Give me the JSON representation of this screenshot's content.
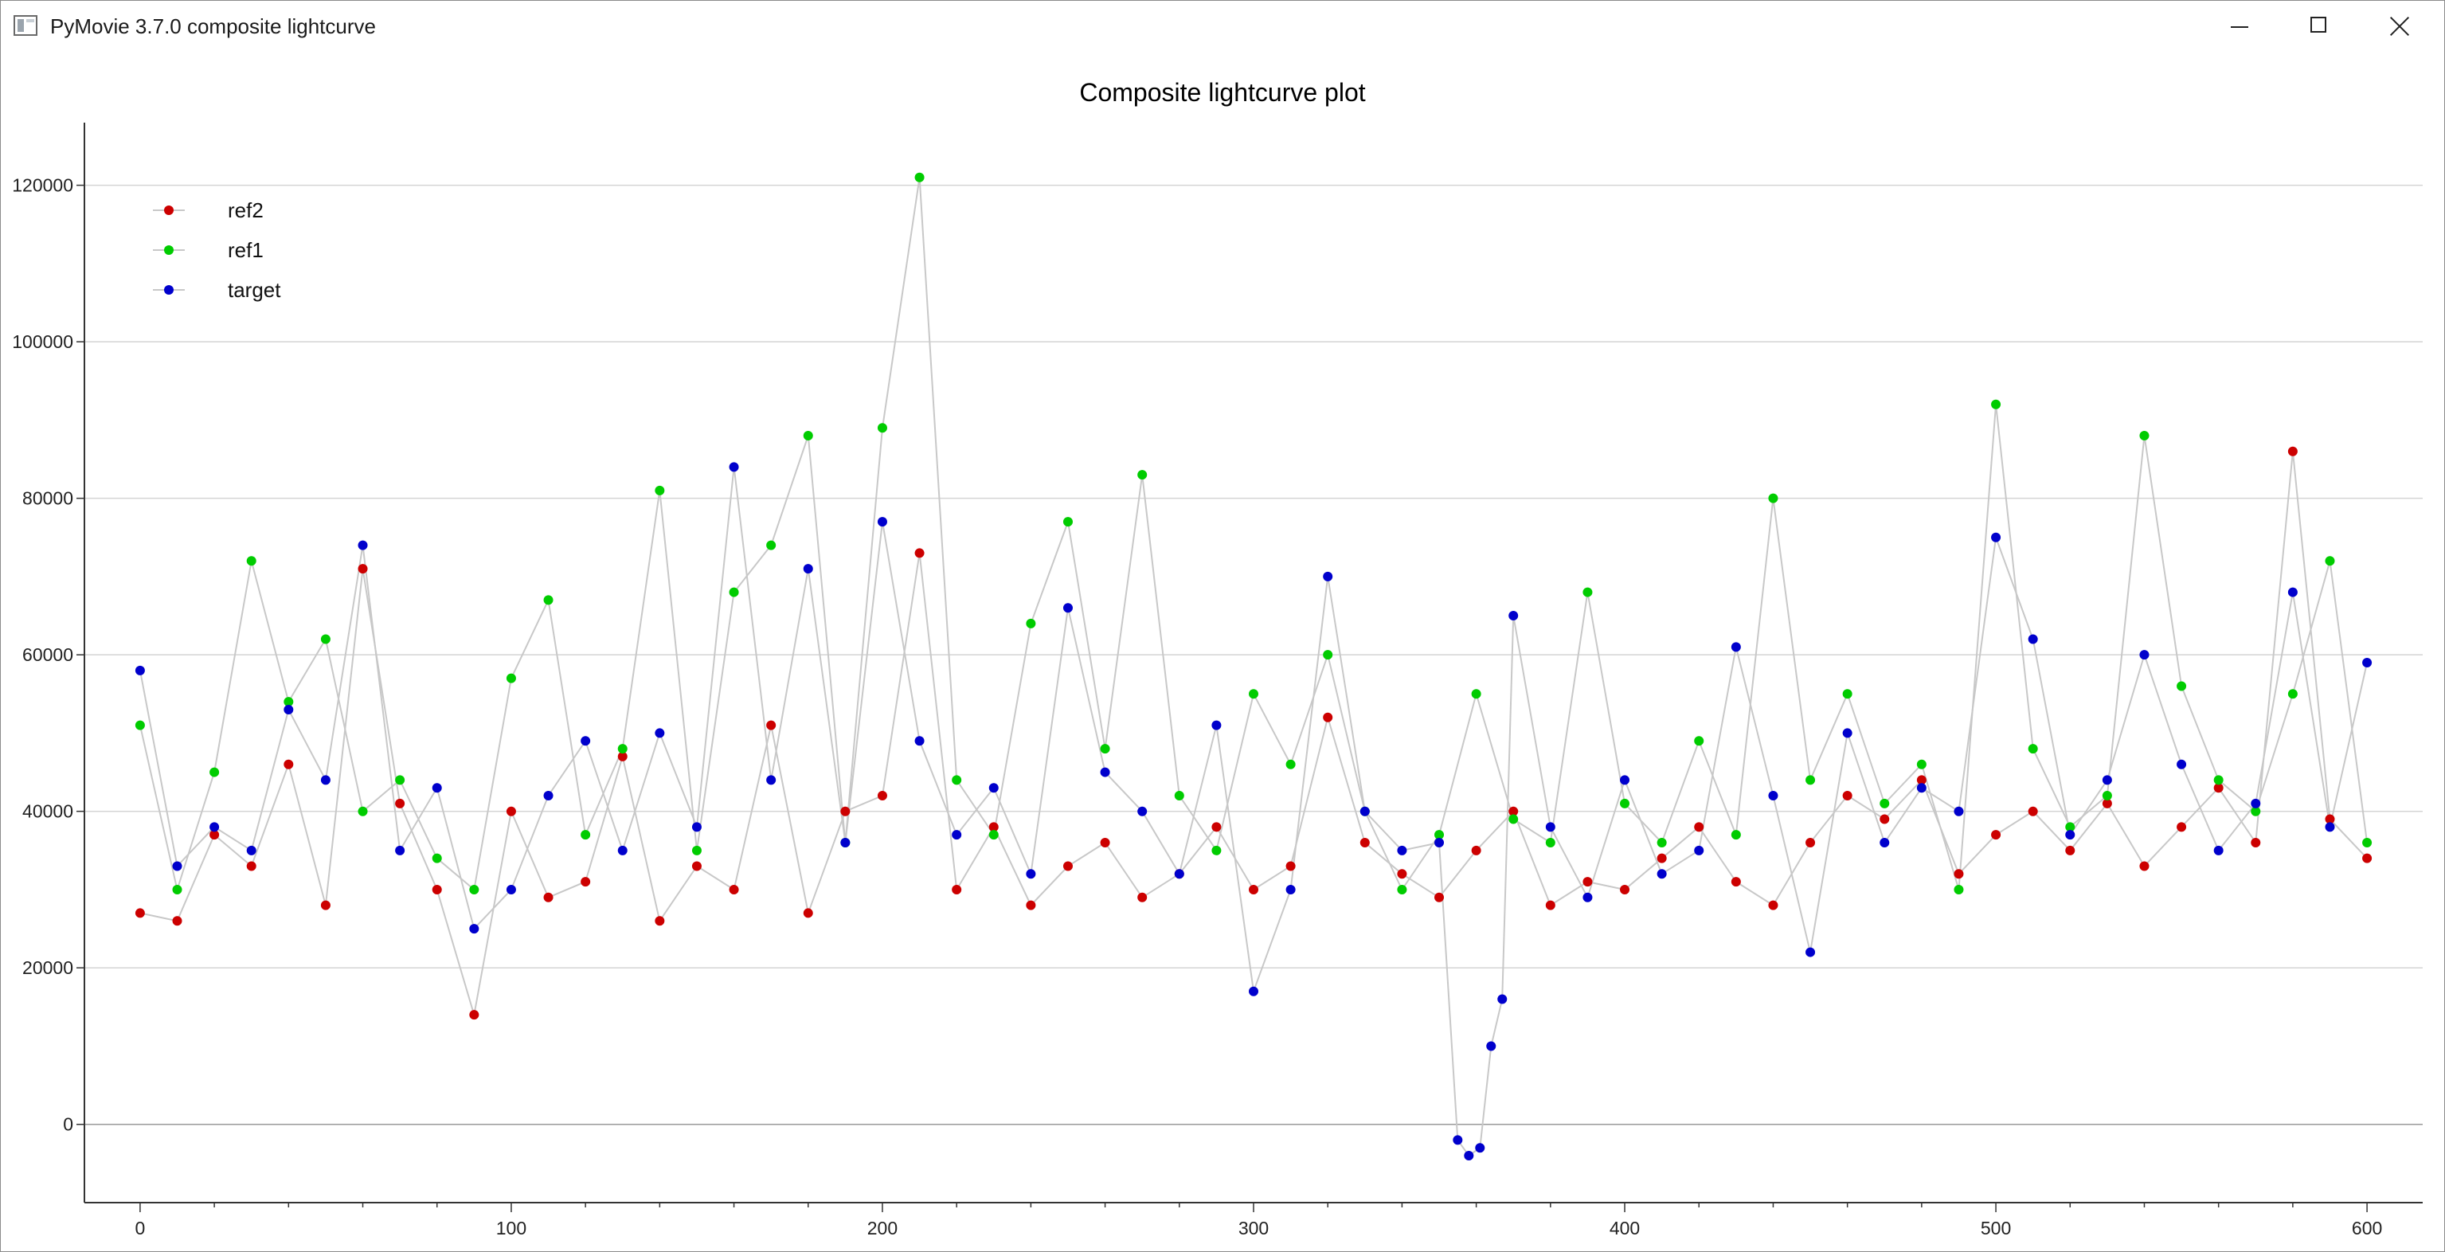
{
  "window": {
    "title": "PyMovie 3.7.0 composite lightcurve",
    "icon": "app-window-icon"
  },
  "controls": {
    "minimize": "minimize-icon",
    "maximize": "maximize-icon",
    "close": "close-icon"
  },
  "chart_data": {
    "type": "scatter",
    "title": "Composite lightcurve plot",
    "xlabel": "",
    "ylabel": "",
    "xlim": [
      -15,
      615
    ],
    "ylim": [
      -10000,
      128000
    ],
    "x_ticks": [
      0,
      100,
      200,
      300,
      400,
      500,
      600
    ],
    "y_ticks": [
      0,
      20000,
      40000,
      60000,
      80000,
      100000,
      120000
    ],
    "grid": "horizontal",
    "legend_position": "top-left",
    "connecting_line_color": "#c8c8c8",
    "series": [
      {
        "name": "ref2",
        "color": "#cc0000",
        "x": [
          0,
          10,
          20,
          30,
          40,
          50,
          60,
          70,
          80,
          90,
          100,
          110,
          120,
          130,
          140,
          150,
          160,
          170,
          180,
          190,
          200,
          210,
          220,
          230,
          240,
          250,
          260,
          270,
          280,
          290,
          300,
          310,
          320,
          330,
          340,
          350,
          360,
          370,
          380,
          390,
          400,
          410,
          420,
          430,
          440,
          450,
          460,
          470,
          480,
          490,
          500,
          510,
          520,
          530,
          540,
          550,
          560,
          570,
          580,
          590,
          600
        ],
        "y": [
          27000,
          26000,
          37000,
          33000,
          46000,
          28000,
          71000,
          41000,
          30000,
          14000,
          40000,
          29000,
          31000,
          47000,
          26000,
          33000,
          30000,
          51000,
          27000,
          40000,
          42000,
          73000,
          30000,
          38000,
          28000,
          33000,
          36000,
          29000,
          32000,
          38000,
          30000,
          33000,
          52000,
          36000,
          32000,
          29000,
          35000,
          40000,
          28000,
          31000,
          30000,
          34000,
          38000,
          31000,
          28000,
          36000,
          42000,
          39000,
          44000,
          32000,
          37000,
          40000,
          35000,
          41000,
          33000,
          38000,
          43000,
          36000,
          86000,
          39000,
          34000
        ]
      },
      {
        "name": "ref1",
        "color": "#00cc00",
        "x": [
          0,
          10,
          20,
          30,
          40,
          50,
          60,
          70,
          80,
          90,
          100,
          110,
          120,
          130,
          140,
          150,
          160,
          170,
          180,
          190,
          200,
          210,
          220,
          230,
          240,
          250,
          260,
          270,
          280,
          290,
          300,
          310,
          320,
          330,
          340,
          350,
          360,
          370,
          380,
          390,
          400,
          410,
          420,
          430,
          440,
          450,
          460,
          470,
          480,
          490,
          500,
          510,
          520,
          530,
          540,
          550,
          560,
          570,
          580,
          590,
          600
        ],
        "y": [
          51000,
          30000,
          45000,
          72000,
          54000,
          62000,
          40000,
          44000,
          34000,
          30000,
          57000,
          67000,
          37000,
          48000,
          81000,
          35000,
          68000,
          74000,
          88000,
          36000,
          89000,
          121000,
          44000,
          37000,
          64000,
          77000,
          48000,
          83000,
          42000,
          35000,
          55000,
          46000,
          60000,
          40000,
          30000,
          37000,
          55000,
          39000,
          36000,
          68000,
          41000,
          36000,
          49000,
          37000,
          80000,
          44000,
          55000,
          41000,
          46000,
          30000,
          92000,
          48000,
          38000,
          42000,
          88000,
          56000,
          44000,
          40000,
          55000,
          72000,
          36000
        ]
      },
      {
        "name": "target",
        "color": "#0000cc",
        "x": [
          0,
          10,
          20,
          30,
          40,
          50,
          60,
          70,
          80,
          90,
          100,
          110,
          120,
          130,
          140,
          150,
          160,
          170,
          180,
          190,
          200,
          210,
          220,
          230,
          240,
          250,
          260,
          270,
          280,
          290,
          300,
          310,
          320,
          330,
          340,
          350,
          355,
          358,
          361,
          364,
          367,
          370,
          380,
          390,
          400,
          410,
          420,
          430,
          440,
          450,
          460,
          470,
          480,
          490,
          500,
          510,
          520,
          530,
          540,
          550,
          560,
          570,
          580,
          590,
          600
        ],
        "y": [
          58000,
          33000,
          38000,
          35000,
          53000,
          44000,
          74000,
          35000,
          43000,
          25000,
          30000,
          42000,
          49000,
          35000,
          50000,
          38000,
          84000,
          44000,
          71000,
          36000,
          77000,
          49000,
          37000,
          43000,
          32000,
          66000,
          45000,
          40000,
          32000,
          51000,
          17000,
          30000,
          70000,
          40000,
          35000,
          36000,
          -2000,
          -4000,
          -3000,
          10000,
          16000,
          65000,
          38000,
          29000,
          44000,
          32000,
          35000,
          61000,
          42000,
          22000,
          50000,
          36000,
          43000,
          40000,
          75000,
          62000,
          37000,
          44000,
          60000,
          46000,
          35000,
          41000,
          68000,
          38000,
          59000
        ]
      }
    ]
  }
}
